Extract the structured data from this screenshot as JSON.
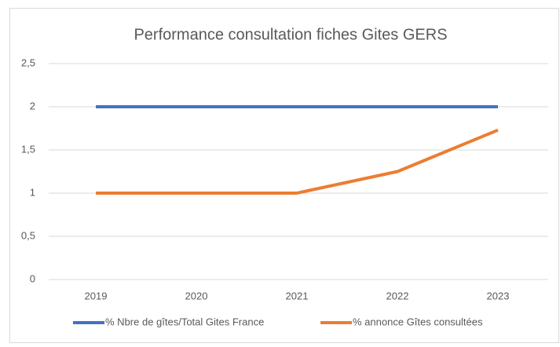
{
  "chart_data": {
    "type": "line",
    "title": "Performance consultation fiches Gites GERS",
    "categories": [
      "2019",
      "2020",
      "2021",
      "2022",
      "2023"
    ],
    "series": [
      {
        "name": "% Nbre de gîtes/Total Gites France",
        "color": "#4472c4",
        "values": [
          2,
          2,
          2,
          2,
          2
        ]
      },
      {
        "name": "% annonce Gîtes consultées",
        "color": "#ed7d31",
        "values": [
          1,
          1,
          1,
          1.25,
          1.73
        ]
      }
    ],
    "ylim": [
      0,
      2.5
    ],
    "yticks": [
      0,
      {
        "value": 0.5,
        "label": "0,5"
      },
      1,
      {
        "value": 1.5,
        "label": "1,5"
      },
      2,
      {
        "value": 2.5,
        "label": "2,5"
      }
    ],
    "grid": true,
    "legend": "bottom"
  }
}
